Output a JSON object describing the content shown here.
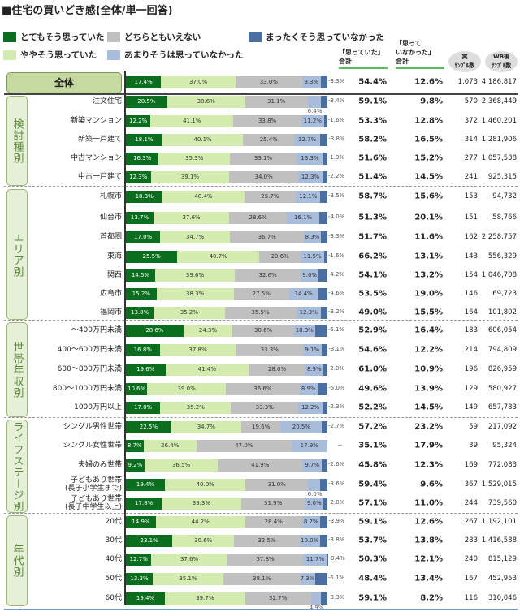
{
  "title": "■住宅の買いどき感(全体/単一回答)",
  "legend": [
    {
      "label": "とてもそう思っていた",
      "color": "#0a6e1e"
    },
    {
      "label": "ややそう思っていた",
      "color": "#d4ebb0"
    },
    {
      "label": "どちらともいえない",
      "color": "#c0c0c0"
    },
    {
      "label": "あまりそうは思っていなかった",
      "color": "#a8bcdc"
    },
    {
      "label": "まったくそう思っていなかった",
      "color": "#4a6ea0"
    }
  ],
  "headers": {
    "yes_total": "「思っていた」\n合計",
    "no_total": "「思って\nいなかった」\n合計",
    "sample": "実\nｻﾝﾌﾟﾙ数",
    "wb_sample": "WB後\nｻﾝﾌﾟﾙ数"
  },
  "chart_data": {
    "type": "stacked-bar-100",
    "unit": "%",
    "overall": {
      "label": "全体",
      "values": [
        17.4,
        37.0,
        33.0,
        9.3,
        3.3
      ],
      "yes_total": "54.4%",
      "no_total": "12.6%",
      "n": "1,073",
      "wb": "4,186,817"
    },
    "groups": [
      {
        "label": "検討種別",
        "rows": [
          {
            "label": "注文住宅",
            "values": [
              20.5,
              38.6,
              31.1,
              6.4,
              3.4
            ],
            "yes_total": "59.1%",
            "no_total": "9.8%",
            "n": "570",
            "wb": "2,368,449"
          },
          {
            "label": "新築マンション",
            "values": [
              12.2,
              41.1,
              33.8,
              11.2,
              1.6
            ],
            "yes_total": "53.3%",
            "no_total": "12.8%",
            "n": "372",
            "wb": "1,460,201"
          },
          {
            "label": "新築一戸建て",
            "values": [
              18.1,
              40.1,
              25.4,
              12.7,
              3.8
            ],
            "yes_total": "58.2%",
            "no_total": "16.5%",
            "n": "314",
            "wb": "1,281,906"
          },
          {
            "label": "中古マンション",
            "values": [
              16.3,
              35.3,
              33.1,
              13.3,
              1.9
            ],
            "yes_total": "51.6%",
            "no_total": "15.2%",
            "n": "277",
            "wb": "1,057,538"
          },
          {
            "label": "中古一戸建て",
            "values": [
              12.3,
              39.1,
              34.0,
              12.3,
              2.2
            ],
            "yes_total": "51.4%",
            "no_total": "14.5%",
            "n": "241",
            "wb": "925,315"
          }
        ]
      },
      {
        "label": "エリア別",
        "rows": [
          {
            "label": "札幌市",
            "values": [
              18.3,
              40.4,
              25.7,
              12.1,
              3.5
            ],
            "yes_total": "58.7%",
            "no_total": "15.6%",
            "n": "153",
            "wb": "94,732"
          },
          {
            "label": "仙台市",
            "values": [
              13.7,
              37.6,
              28.6,
              16.1,
              4.0
            ],
            "yes_total": "51.3%",
            "no_total": "20.1%",
            "n": "151",
            "wb": "58,766"
          },
          {
            "label": "首都圏",
            "values": [
              17.0,
              34.7,
              36.7,
              8.3,
              3.3
            ],
            "yes_total": "51.7%",
            "no_total": "11.6%",
            "n": "162",
            "wb": "2,258,757"
          },
          {
            "label": "東海",
            "values": [
              25.5,
              40.7,
              20.6,
              11.5,
              1.6
            ],
            "yes_total": "66.2%",
            "no_total": "13.1%",
            "n": "143",
            "wb": "556,329"
          },
          {
            "label": "関西",
            "values": [
              14.5,
              39.6,
              32.6,
              9.0,
              4.2
            ],
            "yes_total": "54.1%",
            "no_total": "13.2%",
            "n": "154",
            "wb": "1,046,708"
          },
          {
            "label": "広島市",
            "values": [
              15.2,
              38.3,
              27.5,
              14.4,
              4.6
            ],
            "yes_total": "53.5%",
            "no_total": "19.0%",
            "n": "146",
            "wb": "69,723"
          },
          {
            "label": "福岡市",
            "values": [
              13.8,
              35.2,
              35.5,
              12.3,
              3.2
            ],
            "yes_total": "49.0%",
            "no_total": "15.5%",
            "n": "164",
            "wb": "101,802"
          }
        ]
      },
      {
        "label": "世帯年収別",
        "rows": [
          {
            "label": "～400万円未満",
            "values": [
              28.6,
              24.3,
              30.6,
              10.3,
              6.1
            ],
            "yes_total": "52.9%",
            "no_total": "16.4%",
            "n": "183",
            "wb": "606,054"
          },
          {
            "label": "400～600万円未満",
            "values": [
              16.8,
              37.8,
              33.3,
              9.1,
              3.1
            ],
            "yes_total": "54.6%",
            "no_total": "12.2%",
            "n": "214",
            "wb": "794,809"
          },
          {
            "label": "600～800万円未満",
            "values": [
              19.6,
              41.4,
              28.0,
              8.9,
              2.0
            ],
            "yes_total": "61.0%",
            "no_total": "10.9%",
            "n": "196",
            "wb": "826,959"
          },
          {
            "label": "800～1000万円未満",
            "values": [
              10.6,
              39.0,
              36.6,
              8.9,
              5.0
            ],
            "yes_total": "49.6%",
            "no_total": "13.9%",
            "n": "129",
            "wb": "580,927"
          },
          {
            "label": "1000万円以上",
            "values": [
              17.0,
              35.2,
              33.3,
              12.2,
              2.3
            ],
            "yes_total": "52.2%",
            "no_total": "14.5%",
            "n": "149",
            "wb": "657,783"
          }
        ]
      },
      {
        "label": "ライフステージ別",
        "rows": [
          {
            "label": "シングル男性世帯",
            "values": [
              22.5,
              34.7,
              19.6,
              20.5,
              2.7
            ],
            "yes_total": "57.2%",
            "no_total": "23.2%",
            "n": "59",
            "wb": "217,092"
          },
          {
            "label": "シングル女性世帯",
            "values": [
              8.7,
              26.4,
              47.0,
              17.9,
              null
            ],
            "last_label": "－",
            "yes_total": "35.1%",
            "no_total": "17.9%",
            "n": "39",
            "wb": "95,324"
          },
          {
            "label": "夫婦のみ世帯",
            "values": [
              9.2,
              36.5,
              41.9,
              9.7,
              2.6
            ],
            "yes_total": "45.8%",
            "no_total": "12.3%",
            "n": "169",
            "wb": "772,083"
          },
          {
            "label": "子どもあり世帯\n(長子小学生まで)",
            "values": [
              19.4,
              40.0,
              31.0,
              6.0,
              3.6
            ],
            "yes_total": "59.4%",
            "no_total": "9.6%",
            "n": "367",
            "wb": "1,529,015"
          },
          {
            "label": "子どもあり世帯\n(長子中学生以上)",
            "values": [
              17.8,
              39.3,
              31.9,
              9.0,
              2.0
            ],
            "yes_total": "57.1%",
            "no_total": "11.0%",
            "n": "244",
            "wb": "739,560"
          }
        ]
      },
      {
        "label": "年代別",
        "rows": [
          {
            "label": "20代",
            "values": [
              14.9,
              44.2,
              28.4,
              8.7,
              3.9
            ],
            "yes_total": "59.1%",
            "no_total": "12.6%",
            "n": "267",
            "wb": "1,192,101"
          },
          {
            "label": "30代",
            "values": [
              23.1,
              30.6,
              32.5,
              10.0,
              3.8
            ],
            "yes_total": "53.7%",
            "no_total": "13.8%",
            "n": "283",
            "wb": "1,416,588"
          },
          {
            "label": "40代",
            "values": [
              12.7,
              37.6,
              37.8,
              11.7,
              0.4
            ],
            "yes_total": "50.3%",
            "no_total": "12.1%",
            "n": "240",
            "wb": "815,129"
          },
          {
            "label": "50代",
            "values": [
              13.3,
              35.1,
              38.1,
              7.3,
              6.1
            ],
            "yes_total": "48.4%",
            "no_total": "13.4%",
            "n": "167",
            "wb": "452,953"
          },
          {
            "label": "60代",
            "values": [
              19.4,
              39.7,
              32.7,
              4.9,
              3.3
            ],
            "yes_total": "59.1%",
            "no_total": "8.2%",
            "n": "116",
            "wb": "310,046"
          }
        ]
      }
    ]
  }
}
